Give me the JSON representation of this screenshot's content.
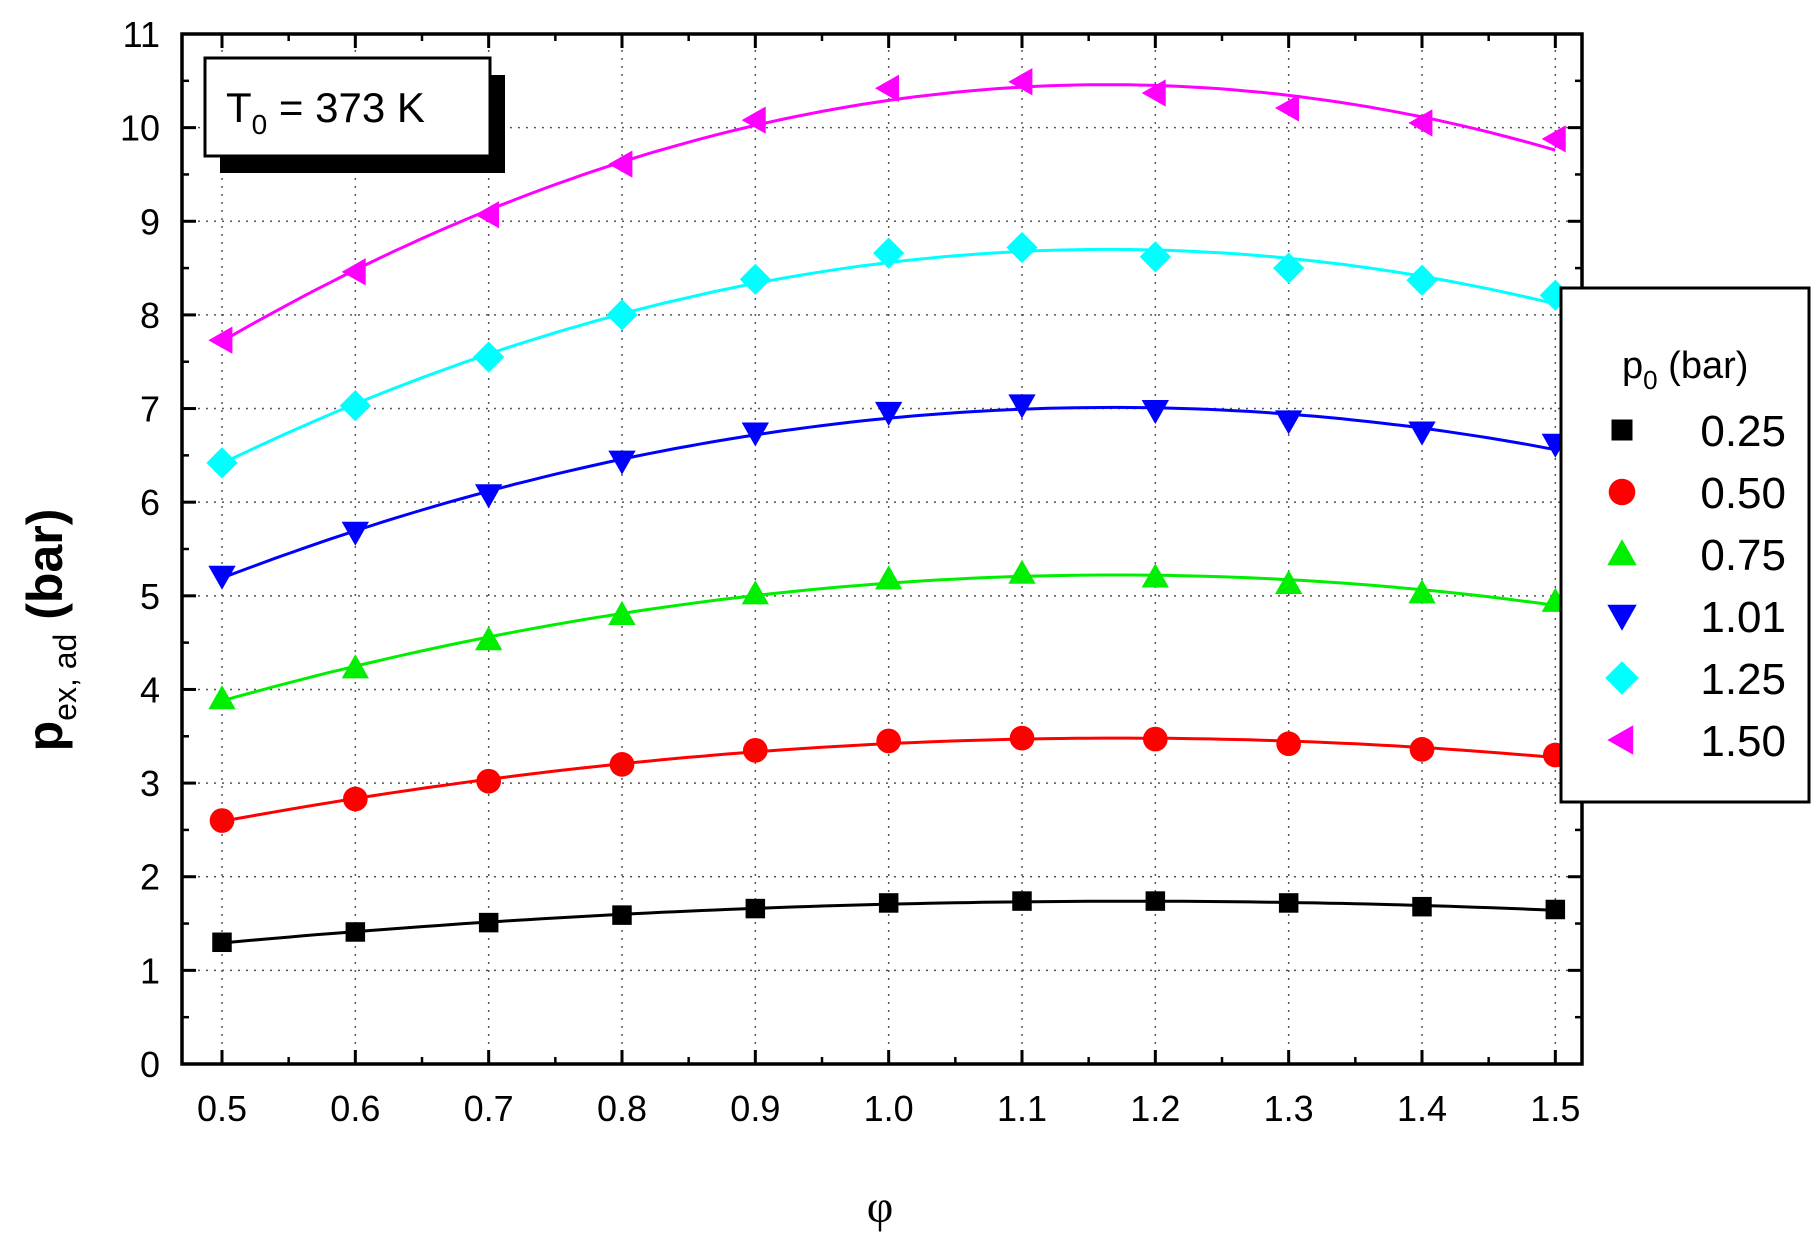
{
  "chart_data": {
    "type": "scatter",
    "xlabel": "φ",
    "ylabel_main": "p",
    "ylabel_sub": "ex, ad",
    "ylabel_unit": " (bar)",
    "annotation_main": "T",
    "annotation_sub": "0",
    "annotation_rest": " = 373 K",
    "legend_title_main": "p",
    "legend_title_sub": "0",
    "legend_title_rest": " (bar)",
    "legend_position": "right",
    "grid": true,
    "xlim": [
      0.47,
      1.52
    ],
    "ylim": [
      0,
      11
    ],
    "x_ticks": [
      "0.5",
      "0.6",
      "0.7",
      "0.8",
      "0.9",
      "1.0",
      "1.1",
      "1.2",
      "1.3",
      "1.4",
      "1.5"
    ],
    "y_ticks": [
      "0",
      "1",
      "2",
      "3",
      "4",
      "5",
      "6",
      "7",
      "8",
      "9",
      "10",
      "11"
    ],
    "x": [
      0.5,
      0.6,
      0.7,
      0.8,
      0.9,
      1.0,
      1.1,
      1.2,
      1.3,
      1.4,
      1.5
    ],
    "series": [
      {
        "name": "0.25",
        "marker": "square",
        "color": "#000000",
        "values": [
          1.3,
          1.41,
          1.51,
          1.59,
          1.66,
          1.72,
          1.74,
          1.74,
          1.72,
          1.68,
          1.65
        ]
      },
      {
        "name": "0.50",
        "marker": "circle",
        "color": "#ff0000",
        "values": [
          2.6,
          2.83,
          3.02,
          3.2,
          3.35,
          3.45,
          3.48,
          3.47,
          3.42,
          3.36,
          3.3
        ]
      },
      {
        "name": "0.75",
        "marker": "triangle-up",
        "color": "#00ee00",
        "values": [
          3.9,
          4.23,
          4.53,
          4.8,
          5.02,
          5.18,
          5.24,
          5.2,
          5.13,
          5.03,
          4.94
        ]
      },
      {
        "name": "1.01",
        "marker": "triangle-down",
        "color": "#0000ff",
        "values": [
          5.21,
          5.68,
          6.08,
          6.44,
          6.74,
          6.96,
          7.04,
          6.98,
          6.87,
          6.75,
          6.62
        ]
      },
      {
        "name": "1.25",
        "marker": "diamond",
        "color": "#00ffff",
        "values": [
          6.42,
          7.03,
          7.55,
          8.0,
          8.38,
          8.66,
          8.72,
          8.62,
          8.5,
          8.37,
          8.21
        ]
      },
      {
        "name": "1.50",
        "marker": "triangle-left",
        "color": "#ff00ff",
        "values": [
          7.73,
          8.46,
          9.07,
          9.61,
          10.08,
          10.42,
          10.49,
          10.37,
          10.21,
          10.05,
          9.88
        ]
      }
    ]
  }
}
